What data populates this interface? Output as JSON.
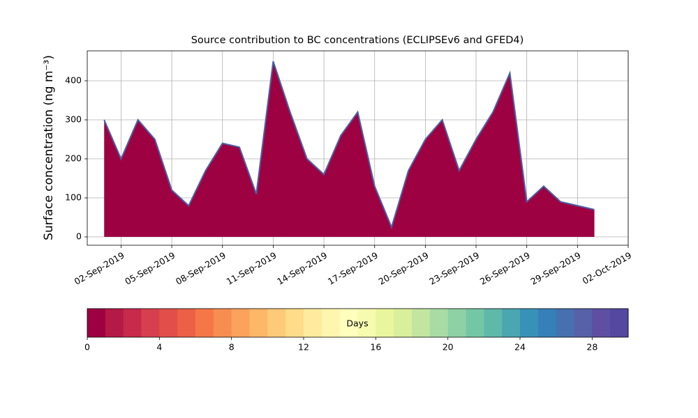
{
  "chart_data": [
    {
      "type": "area",
      "title": "Source contribution to BC concentrations (ECLIPSEv6 and GFED4)",
      "ylabel": "Surface concentration (ng m⁻³)",
      "x": [
        "2019-09-01",
        "2019-09-02",
        "2019-09-03",
        "2019-09-04",
        "2019-09-05",
        "2019-09-06",
        "2019-09-07",
        "2019-09-08",
        "2019-09-09",
        "2019-09-10",
        "2019-09-11",
        "2019-09-12",
        "2019-09-13",
        "2019-09-14",
        "2019-09-15",
        "2019-09-16",
        "2019-09-17",
        "2019-09-18",
        "2019-09-19",
        "2019-09-20",
        "2019-09-21",
        "2019-09-22",
        "2019-09-23",
        "2019-09-24",
        "2019-09-25",
        "2019-09-26",
        "2019-09-27",
        "2019-09-28",
        "2019-09-29",
        "2019-09-30"
      ],
      "values": [
        300,
        200,
        300,
        250,
        120,
        80,
        170,
        240,
        230,
        110,
        450,
        320,
        200,
        160,
        260,
        320,
        130,
        25,
        170,
        250,
        300,
        170,
        250,
        320,
        420,
        90,
        130,
        90,
        80,
        70
      ],
      "color": "#9e0142",
      "line_color": "#4a63a6",
      "xlim": [
        "2019-08-31",
        "2019-10-02"
      ],
      "xticks": [
        {
          "value": "2019-09-02",
          "label": "02-Sep-2019"
        },
        {
          "value": "2019-09-05",
          "label": "05-Sep-2019"
        },
        {
          "value": "2019-09-08",
          "label": "08-Sep-2019"
        },
        {
          "value": "2019-09-11",
          "label": "11-Sep-2019"
        },
        {
          "value": "2019-09-14",
          "label": "14-Sep-2019"
        },
        {
          "value": "2019-09-17",
          "label": "17-Sep-2019"
        },
        {
          "value": "2019-09-20",
          "label": "20-Sep-2019"
        },
        {
          "value": "2019-09-23",
          "label": "23-Sep-2019"
        },
        {
          "value": "2019-09-26",
          "label": "26-Sep-2019"
        },
        {
          "value": "2019-09-29",
          "label": "29-Sep-2019"
        },
        {
          "value": "2019-10-02",
          "label": "02-Oct-2019"
        }
      ],
      "ylim": [
        -21.4,
        476.8
      ],
      "yticks": [
        0,
        100,
        200,
        300,
        400
      ],
      "grid": true
    },
    {
      "type": "colorbar",
      "label": "Days",
      "colors": [
        "#9e0142",
        "#b51a46",
        "#c72a4a",
        "#d73f4f",
        "#e14f4a",
        "#eb6046",
        "#f57748",
        "#f88d52",
        "#fba25d",
        "#fdb768",
        "#fdca79",
        "#fedc8a",
        "#feeb9d",
        "#fef5ae",
        "#fefebd",
        "#f6fbb0",
        "#eaf69d",
        "#d9ef9b",
        "#c2e69f",
        "#a9dca4",
        "#8ed1a4",
        "#74c7a5",
        "#5fb9a9",
        "#4aa6b1",
        "#3892b8",
        "#3680b9",
        "#4670b0",
        "#5661a8",
        "#5e4fa2",
        "#5548a0"
      ],
      "xlim": [
        0,
        30
      ],
      "xticks": [
        0,
        4,
        8,
        12,
        16,
        20,
        24,
        28
      ]
    }
  ]
}
